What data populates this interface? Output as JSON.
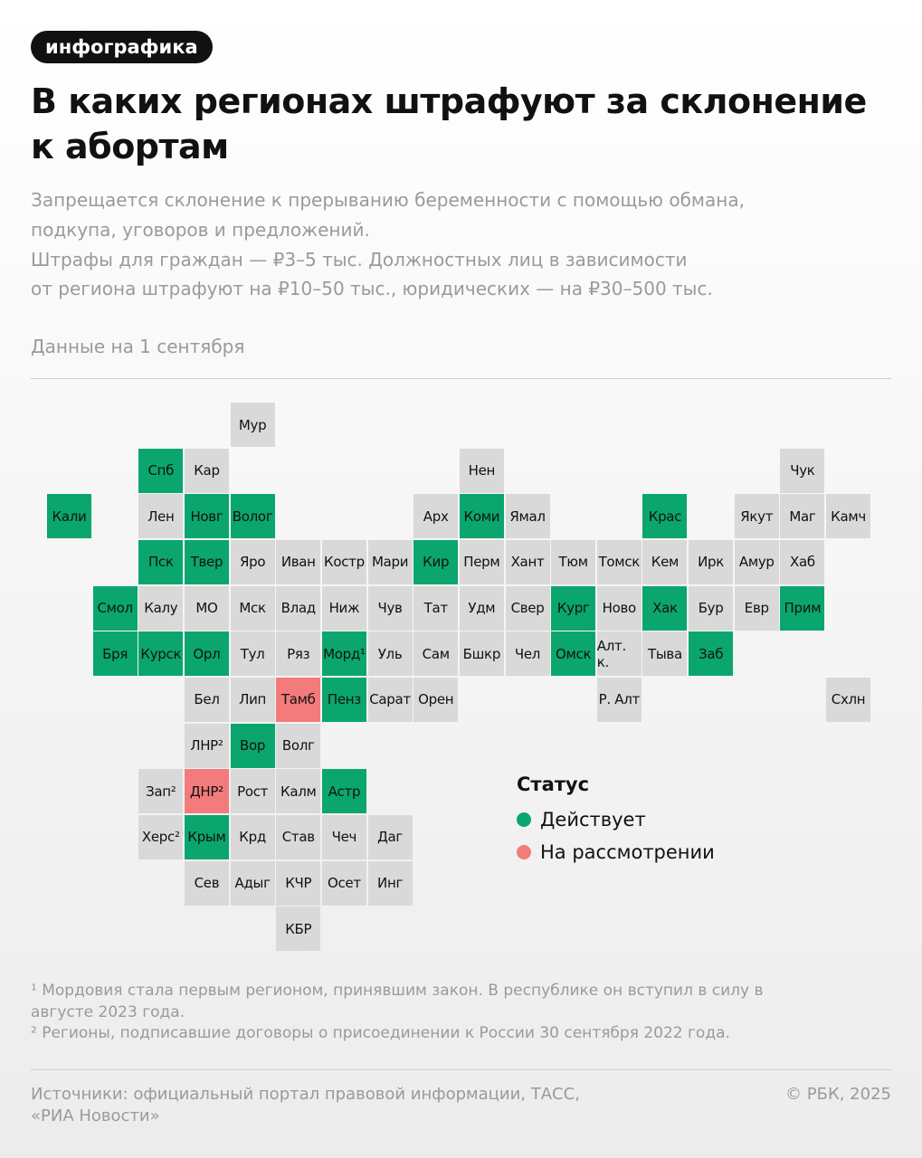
{
  "header": {
    "tag": "инфографика",
    "title_lines": [
      "В каких регионах штрафуют за склонение",
      "к абортам"
    ]
  },
  "subtitle_lines": [
    "Запрещается склонение к прерыванию беременности с помощью обмана,",
    "подкупа, уговоров и предложений.",
    "Штрафы для граждан — ₽3–5 тыс. Должностных лиц в зависимости",
    "от региона штрафуют на ₽10–50 тыс., юридических — на ₽30–500 тыс."
  ],
  "date_note": "Данные на 1 сентября",
  "map": {
    "rows": [
      [
        null,
        null,
        null,
        null,
        {
          "label": "Мур",
          "color": "#d9d9d9"
        },
        null,
        null,
        null,
        null,
        null,
        null,
        null,
        null,
        null,
        null,
        null,
        null,
        null
      ],
      [
        null,
        null,
        {
          "label": "Спб",
          "color": "#0aa66e"
        },
        {
          "label": "Кар",
          "color": "#d9d9d9"
        },
        null,
        null,
        null,
        null,
        null,
        {
          "label": "Нен",
          "color": "#d9d9d9"
        },
        null,
        null,
        null,
        null,
        null,
        null,
        {
          "label": "Чук",
          "color": "#d9d9d9"
        },
        null
      ],
      [
        {
          "label": "Кали",
          "color": "#0aa66e"
        },
        null,
        {
          "label": "Лен",
          "color": "#d9d9d9"
        },
        {
          "label": "Новг",
          "color": "#0aa66e"
        },
        {
          "label": "Волог",
          "color": "#0aa66e"
        },
        null,
        null,
        null,
        {
          "label": "Арх",
          "color": "#d9d9d9"
        },
        {
          "label": "Коми",
          "color": "#0aa66e"
        },
        {
          "label": "Ямал",
          "color": "#d9d9d9"
        },
        null,
        null,
        {
          "label": "Крас",
          "color": "#0aa66e"
        },
        null,
        {
          "label": "Якут",
          "color": "#d9d9d9"
        },
        {
          "label": "Маг",
          "color": "#d9d9d9"
        },
        {
          "label": "Камч",
          "color": "#d9d9d9"
        }
      ],
      [
        null,
        null,
        {
          "label": "Пск",
          "color": "#0aa66e"
        },
        {
          "label": "Твер",
          "color": "#0aa66e"
        },
        {
          "label": "Яро",
          "color": "#d9d9d9"
        },
        {
          "label": "Иван",
          "color": "#d9d9d9"
        },
        {
          "label": "Костр",
          "color": "#d9d9d9"
        },
        {
          "label": "Мари",
          "color": "#d9d9d9"
        },
        {
          "label": "Кир",
          "color": "#0aa66e"
        },
        {
          "label": "Перм",
          "color": "#d9d9d9"
        },
        {
          "label": "Хант",
          "color": "#d9d9d9"
        },
        {
          "label": "Тюм",
          "color": "#d9d9d9"
        },
        {
          "label": "Томск",
          "color": "#d9d9d9"
        },
        {
          "label": "Кем",
          "color": "#d9d9d9"
        },
        {
          "label": "Ирк",
          "color": "#d9d9d9"
        },
        {
          "label": "Амур",
          "color": "#d9d9d9"
        },
        {
          "label": "Хаб",
          "color": "#d9d9d9"
        },
        null
      ],
      [
        null,
        {
          "label": "Смол",
          "color": "#0aa66e"
        },
        {
          "label": "Калу",
          "color": "#d9d9d9"
        },
        {
          "label": "МО",
          "color": "#d9d9d9"
        },
        {
          "label": "Мск",
          "color": "#d9d9d9"
        },
        {
          "label": "Влад",
          "color": "#d9d9d9"
        },
        {
          "label": "Ниж",
          "color": "#d9d9d9"
        },
        {
          "label": "Чув",
          "color": "#d9d9d9"
        },
        {
          "label": "Тат",
          "color": "#d9d9d9"
        },
        {
          "label": "Удм",
          "color": "#d9d9d9"
        },
        {
          "label": "Свер",
          "color": "#d9d9d9"
        },
        {
          "label": "Кург",
          "color": "#0aa66e"
        },
        {
          "label": "Ново",
          "color": "#d9d9d9"
        },
        {
          "label": "Хак",
          "color": "#0aa66e"
        },
        {
          "label": "Бур",
          "color": "#d9d9d9"
        },
        {
          "label": "Евр",
          "color": "#d9d9d9"
        },
        {
          "label": "Прим",
          "color": "#0aa66e"
        },
        null
      ],
      [
        null,
        {
          "label": "Бря",
          "color": "#0aa66e"
        },
        {
          "label": "Курск",
          "color": "#0aa66e"
        },
        {
          "label": "Орл",
          "color": "#0aa66e"
        },
        {
          "label": "Тул",
          "color": "#d9d9d9"
        },
        {
          "label": "Ряз",
          "color": "#d9d9d9"
        },
        {
          "label": "Морд¹",
          "color": "#0aa66e"
        },
        {
          "label": "Уль",
          "color": "#d9d9d9"
        },
        {
          "label": "Сам",
          "color": "#d9d9d9"
        },
        {
          "label": "Бшкр",
          "color": "#d9d9d9"
        },
        {
          "label": "Чел",
          "color": "#d9d9d9"
        },
        {
          "label": "Омск",
          "color": "#0aa66e"
        },
        {
          "label": "Алт. к.",
          "color": "#d9d9d9"
        },
        {
          "label": "Тыва",
          "color": "#d9d9d9"
        },
        {
          "label": "Заб",
          "color": "#0aa66e"
        },
        null,
        null,
        null
      ],
      [
        null,
        null,
        null,
        {
          "label": "Бел",
          "color": "#d9d9d9"
        },
        {
          "label": "Лип",
          "color": "#d9d9d9"
        },
        {
          "label": "Тамб",
          "color": "#f47b7b"
        },
        {
          "label": "Пенз",
          "color": "#0aa66e"
        },
        {
          "label": "Сарат",
          "color": "#d9d9d9"
        },
        {
          "label": "Орен",
          "color": "#d9d9d9"
        },
        null,
        null,
        null,
        {
          "label": "Р. Алт",
          "color": "#d9d9d9"
        },
        null,
        null,
        null,
        null,
        {
          "label": "Схлн",
          "color": "#d9d9d9"
        }
      ],
      [
        null,
        null,
        null,
        {
          "label": "ЛНР²",
          "color": "#d9d9d9"
        },
        {
          "label": "Вор",
          "color": "#0aa66e"
        },
        {
          "label": "Волг",
          "color": "#d9d9d9"
        },
        null,
        null,
        null,
        null,
        null,
        null,
        null,
        null,
        null,
        null,
        null,
        null
      ],
      [
        null,
        null,
        {
          "label": "Зап²",
          "color": "#d9d9d9"
        },
        {
          "label": "ДНР²",
          "color": "#f47b7b"
        },
        {
          "label": "Рост",
          "color": "#d9d9d9"
        },
        {
          "label": "Калм",
          "color": "#d9d9d9"
        },
        {
          "label": "Астр",
          "color": "#0aa66e"
        },
        null,
        null,
        null,
        null,
        null,
        null,
        null,
        null,
        null,
        null,
        null
      ],
      [
        null,
        null,
        {
          "label": "Херс²",
          "color": "#d9d9d9"
        },
        {
          "label": "Крым",
          "color": "#0aa66e"
        },
        {
          "label": "Крд",
          "color": "#d9d9d9"
        },
        {
          "label": "Став",
          "color": "#d9d9d9"
        },
        {
          "label": "Чеч",
          "color": "#d9d9d9"
        },
        {
          "label": "Даг",
          "color": "#d9d9d9"
        },
        null,
        null,
        null,
        null,
        null,
        null,
        null,
        null,
        null,
        null
      ],
      [
        null,
        null,
        null,
        {
          "label": "Сев",
          "color": "#d9d9d9"
        },
        {
          "label": "Адыг",
          "color": "#d9d9d9"
        },
        {
          "label": "КЧР",
          "color": "#d9d9d9"
        },
        {
          "label": "Осет",
          "color": "#d9d9d9"
        },
        {
          "label": "Инг",
          "color": "#d9d9d9"
        },
        null,
        null,
        null,
        null,
        null,
        null,
        null,
        null,
        null,
        null
      ],
      [
        null,
        null,
        null,
        null,
        null,
        {
          "label": "КБР",
          "color": "#d9d9d9"
        },
        null,
        null,
        null,
        null,
        null,
        null,
        null,
        null,
        null,
        null,
        null,
        null
      ]
    ]
  },
  "legend": {
    "title": "Статус",
    "items": [
      {
        "label": "Действует",
        "color": "#0aa66e"
      },
      {
        "label": "На рассмотрении",
        "color": "#f47b7b"
      }
    ]
  },
  "footnotes": [
    "¹ Мордовия стала первым регионом, принявшим закон. В республике он вступил в силу в",
    "августе 2023 года.",
    "² Регионы, подписавшие договоры о присоединении к России 30 сентября 2022 года."
  ],
  "footer": {
    "sources_lines": [
      "Источники: официальный портал правовой информации, ТАСС,",
      "«РИА Новости»"
    ],
    "copyright": "© РБК, 2025"
  }
}
